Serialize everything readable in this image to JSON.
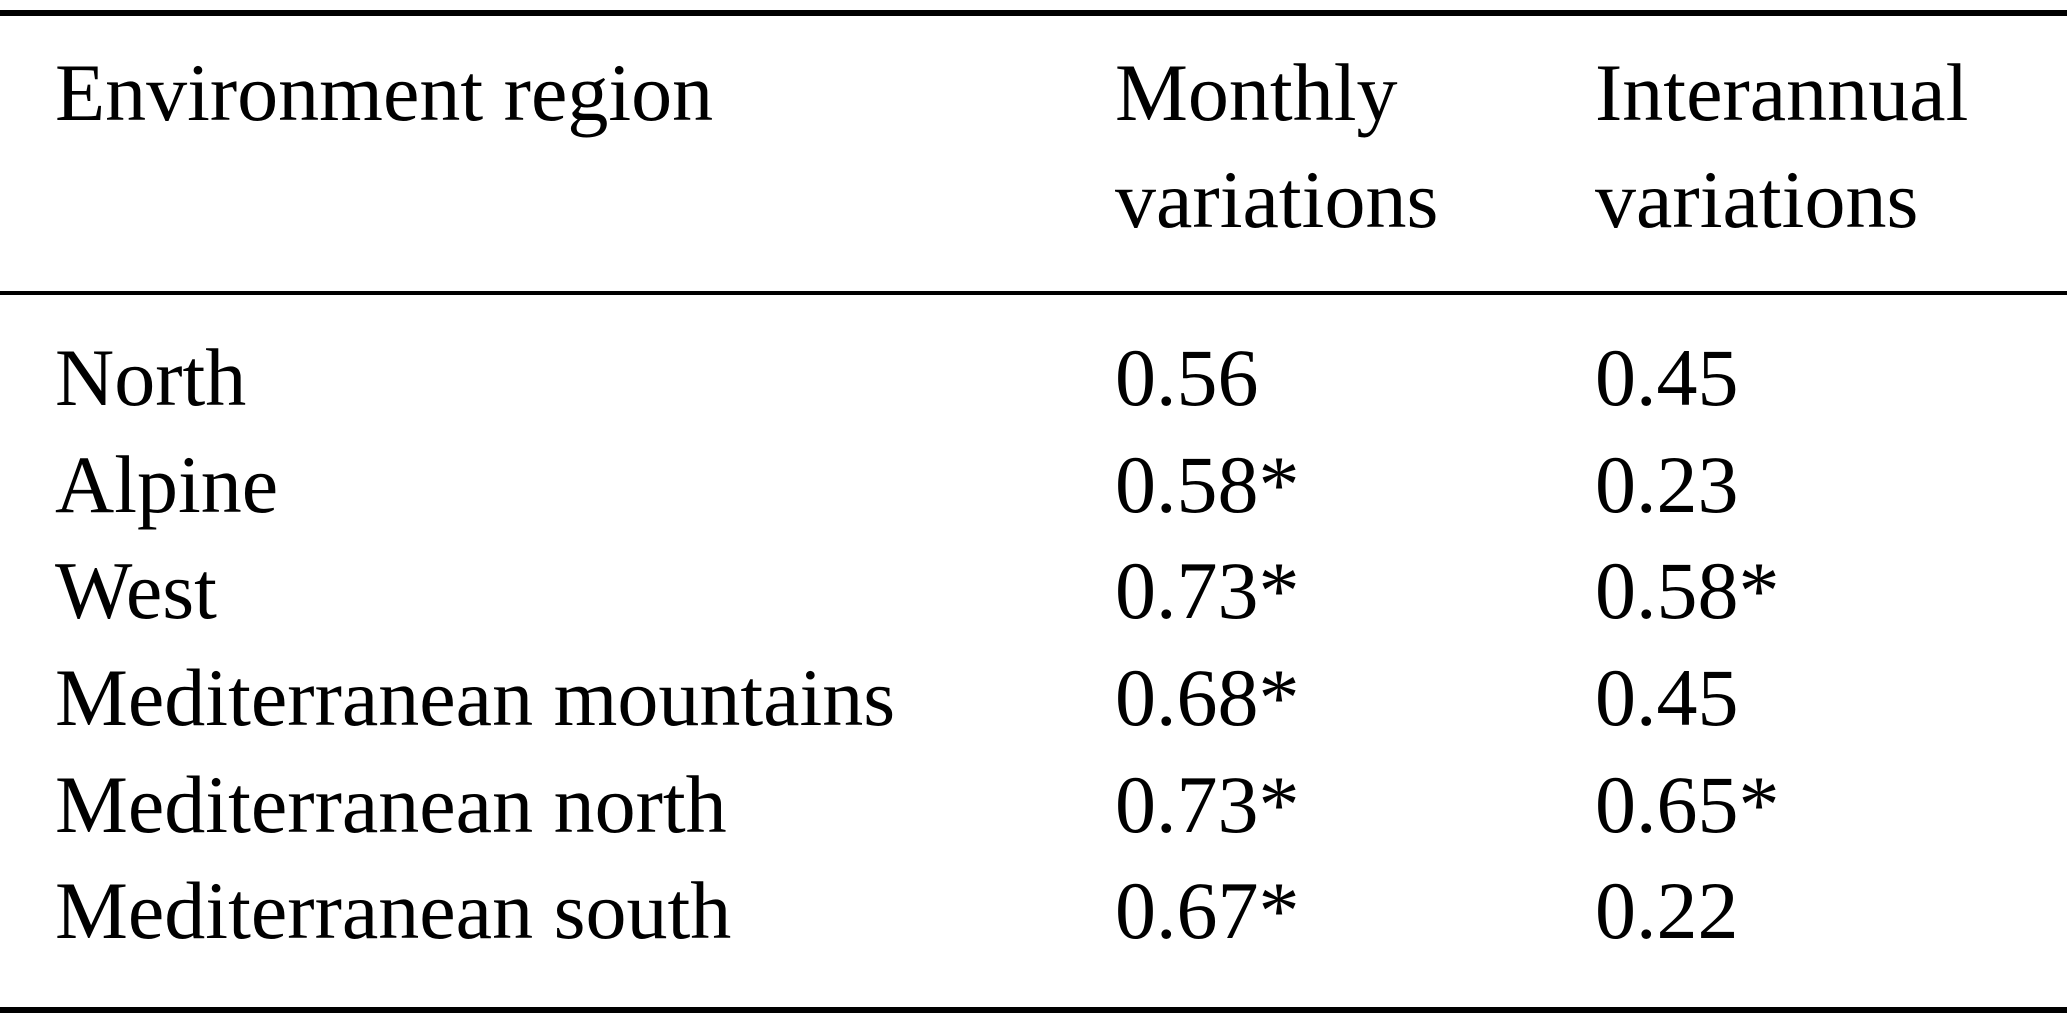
{
  "page": {
    "background": "#ffffff",
    "text_color": "#000000",
    "rule_color": "#000000"
  },
  "table": {
    "headers": {
      "region": "Environment region",
      "monthly": "Monthly variations",
      "interannual": "Interannual variations"
    },
    "rows": [
      {
        "region": "North",
        "monthly": "0.56",
        "interannual": "0.45"
      },
      {
        "region": "Alpine",
        "monthly": "0.58*",
        "interannual": "0.23"
      },
      {
        "region": "West",
        "monthly": "0.73*",
        "interannual": "0.58*"
      },
      {
        "region": "Mediterranean mountains",
        "monthly": "0.68*",
        "interannual": "0.45"
      },
      {
        "region": "Mediterranean north",
        "monthly": "0.73*",
        "interannual": "0.65*"
      },
      {
        "region": "Mediterranean south",
        "monthly": "0.67*",
        "interannual": "0.22"
      }
    ],
    "footnote_symbol_meaning": "*"
  }
}
